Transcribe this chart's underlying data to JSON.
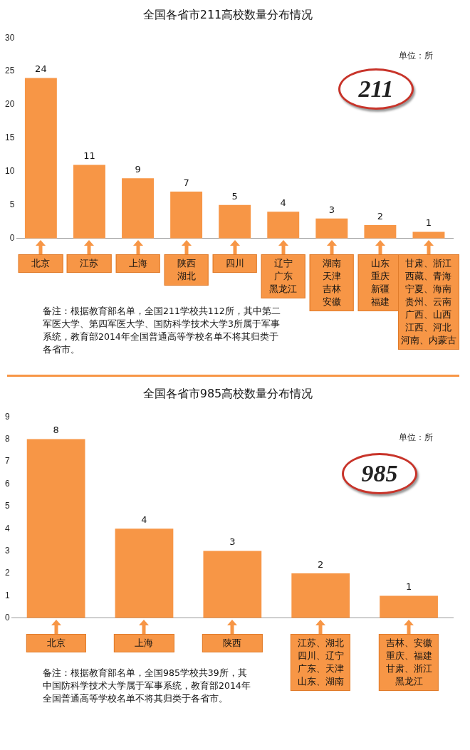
{
  "chart_data": [
    {
      "type": "bar",
      "title": "全国各省市211高校数量分布情况",
      "categories": [
        "北京",
        "江苏",
        "上海",
        "陕西湖北",
        "四川",
        "辽宁广东黑龙江",
        "湖南天津吉林安徽",
        "山东重庆新疆福建",
        "甘肃、浙江西藏、青海宁夏、海南贵州、云南广西、山西江西、河北河南、内蒙古"
      ],
      "values": [
        24,
        11,
        9,
        7,
        5,
        4,
        3,
        2,
        1
      ],
      "color": "#f79646",
      "ylim": [
        0,
        30
      ],
      "yticks": [
        0,
        5,
        10,
        15,
        20,
        25,
        30
      ],
      "grid": false,
      "data_labels": true,
      "annotations": [
        "单位：所",
        "211",
        "备注：根据教育部名单，全国211学校共112所，其中第二军医大学、第四军医大学、国防科学技术大学3所属于军事系统，教育部2014年全国普通高等学校名单不将其归类于各省市。"
      ]
    },
    {
      "type": "bar",
      "title": "全国各省市985高校数量分布情况",
      "categories": [
        "北京",
        "上海",
        "陕西",
        "江苏、湖北四川、辽宁广东、天津山东、湖南",
        "吉林、安徽重庆、福建甘肃、浙江黑龙江"
      ],
      "values": [
        8,
        4,
        3,
        2,
        1
      ],
      "color": "#f79646",
      "ylim": [
        0,
        9
      ],
      "yticks": [
        0,
        1,
        2,
        3,
        4,
        5,
        6,
        7,
        8,
        9
      ],
      "grid": false,
      "data_labels": true,
      "annotations": [
        "单位：所",
        "985",
        "备注：根据教育部名单，全国985学校共39所，其中国防科学技术大学属于军事系统，教育部2014年全国普通高等学校名单不将其归类于各省市。"
      ]
    }
  ]
}
